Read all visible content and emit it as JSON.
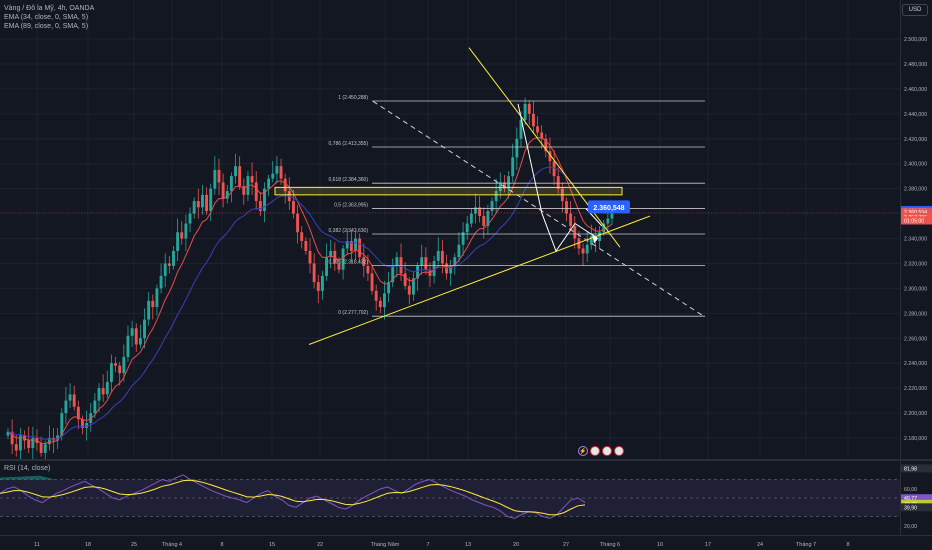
{
  "legend": {
    "symbol": "Vàng / Đô la Mỹ, 4h, OANDA",
    "ema1": "EMA (34, close, 0, SMA, 5)",
    "ema2": "EMA (89, close, 0, SMA, 5)"
  },
  "rsi_legend": "RSI (14, close)",
  "currency_button": "USD",
  "colors": {
    "background": "#131722",
    "up_candle": "#26a69a",
    "down_candle": "#ef5350",
    "ema34": "#e84b4b",
    "ema89": "#3b3fb8",
    "trendline": "#ffeb3b",
    "rsi": "#7e57c2",
    "rsi_ma": "#ffeb3b",
    "price_tag": "#2962ff"
  },
  "price_axis": {
    "labels": [
      "2.500,000",
      "2.480,000",
      "2.460,000",
      "2.440,000",
      "2.420,000",
      "2.400,000",
      "2.380,000",
      "2.360,000",
      "2.340,000",
      "2.320,000",
      "2.300,000",
      "2.280,000",
      "2.260,000",
      "2.240,000",
      "2.220,000",
      "2.200,000",
      "2.180,000"
    ],
    "values": [
      2500,
      2480,
      2460,
      2440,
      2420,
      2400,
      2380,
      2360,
      2340,
      2320,
      2300,
      2280,
      2260,
      2240,
      2220,
      2200,
      2180
    ],
    "tags": [
      {
        "label": "2.361,361",
        "value": 2361.361,
        "color": "#2962ff"
      },
      {
        "label": "2.360,594",
        "value": 2360.594,
        "color": "#ef5350"
      },
      {
        "label": "2.357,795",
        "value": 2357.795,
        "color": "#ef5350"
      },
      {
        "label": "01:05:00",
        "value": 2355.9,
        "color": "#ef5350"
      }
    ]
  },
  "rsi_axis": {
    "labels": [
      "60,00",
      "40,00",
      "20,00"
    ],
    "values": [
      60,
      40,
      20
    ],
    "tags": [
      {
        "label": "81,98",
        "value": 81.98,
        "color": "#2a2e39"
      },
      {
        "label": "49,77",
        "value": 49.77,
        "color": "#7e57c2"
      },
      {
        "label": "43,70",
        "value": 43.7,
        "color": "#c0ca33"
      },
      {
        "label": "39,90",
        "value": 39.9,
        "color": "#2a2e39"
      }
    ]
  },
  "time_axis": {
    "labels": [
      "11",
      "18",
      "25",
      "Tháng 4",
      "8",
      "15",
      "22",
      "Tháng Năm",
      "7",
      "13",
      "20",
      "27",
      "Tháng 6",
      "10",
      "17",
      "24",
      "Tháng 7",
      "8"
    ]
  },
  "fibonacci": [
    {
      "label": "1 (2.450,288)",
      "value": 2450.288
    },
    {
      "label": "0,786 (2.413,355)",
      "value": 2413.355
    },
    {
      "label": "0,618 (2.384,360)",
      "value": 2384.36
    },
    {
      "label": "0,5 (2.363,995)",
      "value": 2363.995
    },
    {
      "label": "0,382 (2.343,630)",
      "value": 2343.63
    },
    {
      "label": "0,236 (2.318,432)",
      "value": 2318.432
    },
    {
      "label": "0 (2.277,702)",
      "value": 2277.702
    }
  ],
  "price_bubble": "2.360,548",
  "chart_data": {
    "type": "candlestick",
    "description_series": "OHLC approximations read from chart, 4h candles",
    "y_range": [
      2170,
      2510
    ],
    "rsi_range": [
      10,
      90
    ],
    "rsi_levels": [
      70,
      30
    ],
    "price_path": [
      2185,
      2175,
      2170,
      2182,
      2178,
      2172,
      2180,
      2176,
      2168,
      2175,
      2180,
      2178,
      2182,
      2200,
      2210,
      2215,
      2205,
      2195,
      2188,
      2192,
      2200,
      2210,
      2220,
      2215,
      2225,
      2240,
      2238,
      2232,
      2245,
      2262,
      2268,
      2255,
      2260,
      2275,
      2290,
      2285,
      2300,
      2310,
      2320,
      2318,
      2330,
      2345,
      2340,
      2352,
      2360,
      2370,
      2365,
      2375,
      2362,
      2380,
      2395,
      2385,
      2372,
      2378,
      2390,
      2398,
      2382,
      2375,
      2390,
      2385,
      2370,
      2362,
      2380,
      2388,
      2392,
      2398,
      2388,
      2378,
      2370,
      2360,
      2345,
      2338,
      2330,
      2320,
      2305,
      2298,
      2310,
      2325,
      2330,
      2320,
      2315,
      2332,
      2338,
      2330,
      2340,
      2325,
      2318,
      2312,
      2298,
      2290,
      2285,
      2296,
      2305,
      2318,
      2325,
      2312,
      2302,
      2295,
      2308,
      2318,
      2325,
      2315,
      2310,
      2322,
      2330,
      2320,
      2312,
      2318,
      2325,
      2335,
      2345,
      2352,
      2360,
      2365,
      2358,
      2350,
      2362,
      2370,
      2378,
      2385,
      2380,
      2390,
      2405,
      2420,
      2435,
      2448,
      2440,
      2430,
      2425,
      2420,
      2410,
      2402,
      2390,
      2380,
      2370,
      2360,
      2350,
      2340,
      2332,
      2328,
      2335,
      2342,
      2338,
      2345,
      2352,
      2356,
      2360
    ],
    "rsi_path": [
      55,
      60,
      62,
      58,
      52,
      48,
      45,
      50,
      55,
      58,
      62,
      65,
      68,
      64,
      60,
      55,
      50,
      48,
      52,
      55,
      58,
      62,
      66,
      70,
      68,
      72,
      75,
      70,
      66,
      62,
      58,
      55,
      52,
      50,
      48,
      45,
      50,
      55,
      58,
      52,
      48,
      42,
      40,
      45,
      50,
      52,
      48,
      44,
      40,
      38,
      42,
      48,
      52,
      56,
      60,
      62,
      58,
      55,
      60,
      65,
      68,
      70,
      66,
      62,
      58,
      55,
      52,
      48,
      45,
      42,
      40,
      36,
      30,
      28,
      32,
      35,
      34,
      30,
      28,
      32,
      40,
      48,
      50,
      45
    ]
  }
}
